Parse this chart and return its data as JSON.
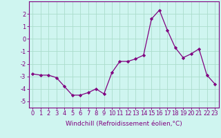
{
  "x": [
    0,
    1,
    2,
    3,
    4,
    5,
    6,
    7,
    8,
    9,
    10,
    11,
    12,
    13,
    14,
    15,
    16,
    17,
    18,
    19,
    20,
    21,
    22,
    23
  ],
  "y": [
    -2.8,
    -2.9,
    -2.9,
    -3.1,
    -3.8,
    -4.5,
    -4.5,
    -4.3,
    -4.0,
    -4.4,
    -2.7,
    -1.8,
    -1.8,
    -1.6,
    -1.3,
    1.6,
    2.3,
    0.7,
    -0.7,
    -1.5,
    -1.2,
    -0.8,
    -2.9,
    -3.6
  ],
  "line_color": "#800080",
  "marker": "D",
  "marker_size": 2.2,
  "bg_color": "#cff5f0",
  "grid_color": "#aaddcc",
  "xlabel": "Windchill (Refroidissement éolien,°C)",
  "xlim": [
    -0.5,
    23.5
  ],
  "ylim": [
    -5.5,
    3.0
  ],
  "yticks": [
    -5,
    -4,
    -3,
    -2,
    -1,
    0,
    1,
    2
  ],
  "xticks": [
    0,
    1,
    2,
    3,
    4,
    5,
    6,
    7,
    8,
    9,
    10,
    11,
    12,
    13,
    14,
    15,
    16,
    17,
    18,
    19,
    20,
    21,
    22,
    23
  ],
  "tick_color": "#800080",
  "label_color": "#800080",
  "axis_color": "#800080",
  "tick_fontsize": 6.0,
  "xlabel_fontsize": 6.5
}
